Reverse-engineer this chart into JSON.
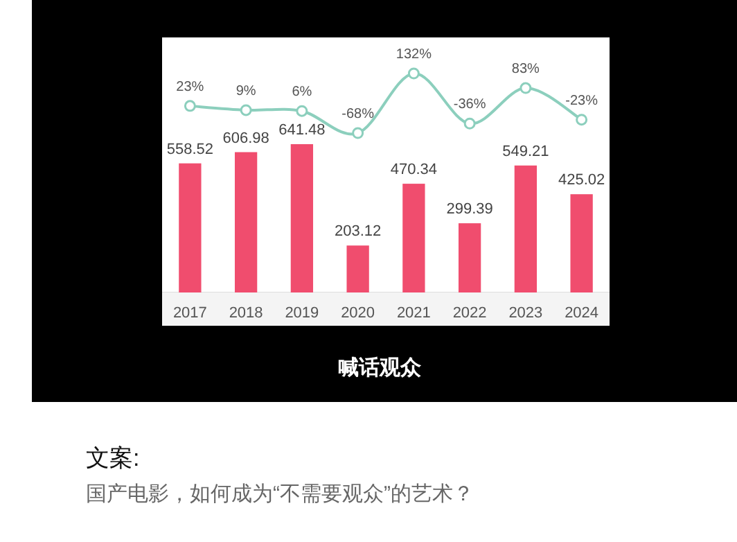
{
  "chart_data": [
    {
      "type": "bar",
      "categories": [
        "2017",
        "2018",
        "2019",
        "2020",
        "2021",
        "2022",
        "2023",
        "2024"
      ],
      "data_labels": true,
      "color": "#f04d6e",
      "values": [
        558.52,
        606.98,
        641.48,
        203.12,
        470.34,
        299.39,
        549.21,
        425.02
      ],
      "annotations": [
        "喊话观众",
        "文案:",
        "国产电影，如何成为“不需要观众”的艺术？"
      ]
    },
    {
      "type": "line",
      "categories": [
        "2017",
        "2018",
        "2019",
        "2020",
        "2021",
        "2022",
        "2023",
        "2024"
      ],
      "marker": "circle",
      "tick_labels": false,
      "color": "#8ccfbd",
      "values": [
        23,
        9,
        6,
        -68,
        132,
        -36,
        83,
        -23
      ],
      "value_labels": [
        "23%",
        "9%",
        "6%",
        "-68%",
        "132%",
        "-36%",
        "83%",
        "-23%"
      ]
    }
  ]
}
